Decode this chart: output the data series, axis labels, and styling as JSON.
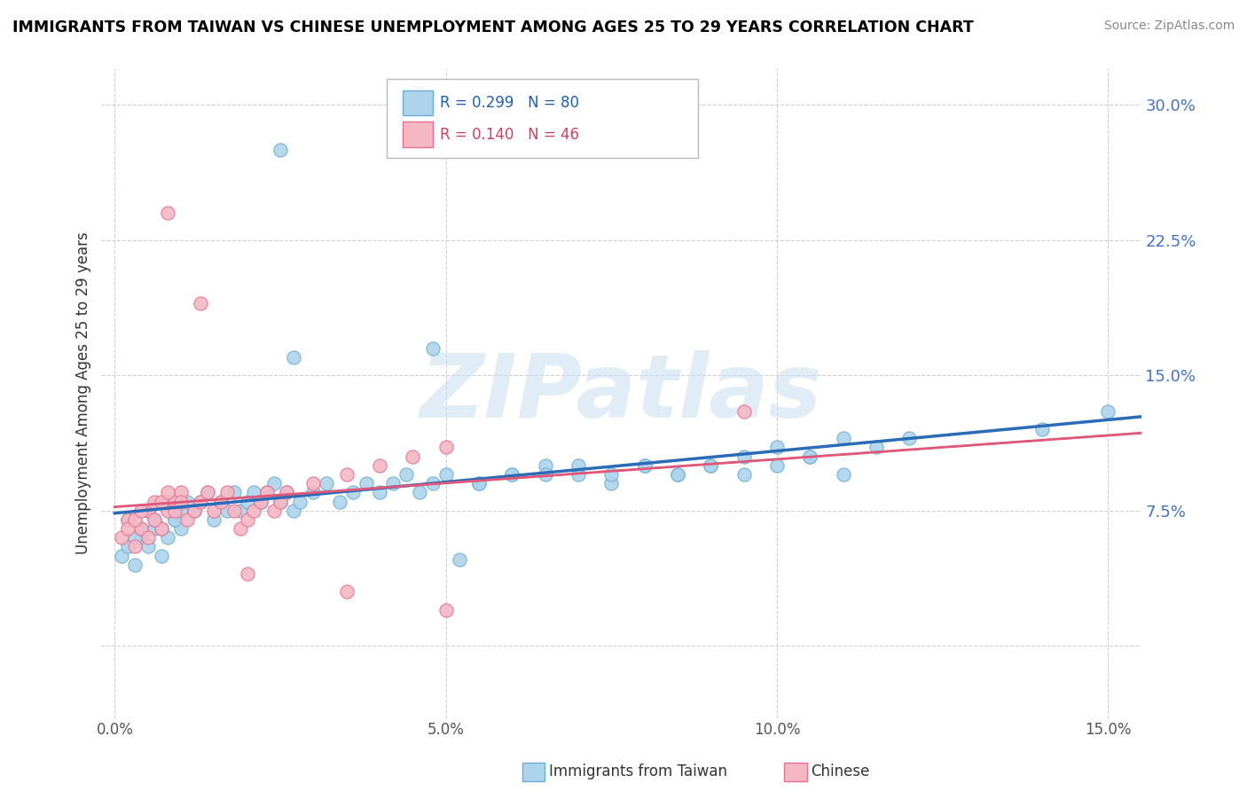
{
  "title": "IMMIGRANTS FROM TAIWAN VS CHINESE UNEMPLOYMENT AMONG AGES 25 TO 29 YEARS CORRELATION CHART",
  "source": "Source: ZipAtlas.com",
  "ylabel": "Unemployment Among Ages 25 to 29 years",
  "xlim": [
    -0.002,
    0.155
  ],
  "ylim": [
    -0.04,
    0.32
  ],
  "xticks": [
    0.0,
    0.05,
    0.1,
    0.15
  ],
  "xtick_labels": [
    "0.0%",
    "5.0%",
    "10.0%",
    "15.0%"
  ],
  "yticks": [
    0.0,
    0.075,
    0.15,
    0.225,
    0.3
  ],
  "ytick_labels": [
    "",
    "7.5%",
    "15.0%",
    "22.5%",
    "30.0%"
  ],
  "bottom_legend": [
    "Immigrants from Taiwan",
    "Chinese"
  ],
  "watermark": "ZIPatlas",
  "series1_color": "#aed4ec",
  "series2_color": "#f4b8c4",
  "series1_edge": "#6aaed6",
  "series2_edge": "#e87090",
  "trend1_color": "#2b6cb8",
  "trend2_color": "#e05878",
  "grid_color": "#d0d0d0",
  "taiwan_R": 0.299,
  "taiwan_N": 80,
  "chinese_R": 0.14,
  "chinese_N": 46,
  "taiwan_x": [
    0.001,
    0.002,
    0.003,
    0.004,
    0.005,
    0.006,
    0.007,
    0.008,
    0.009,
    0.01,
    0.002,
    0.003,
    0.004,
    0.005,
    0.006,
    0.007,
    0.008,
    0.009,
    0.01,
    0.011,
    0.012,
    0.013,
    0.014,
    0.015,
    0.016,
    0.017,
    0.018,
    0.019,
    0.02,
    0.021,
    0.022,
    0.023,
    0.024,
    0.025,
    0.026,
    0.027,
    0.028,
    0.03,
    0.032,
    0.034,
    0.036,
    0.038,
    0.04,
    0.042,
    0.044,
    0.046,
    0.048,
    0.05,
    0.055,
    0.06,
    0.065,
    0.07,
    0.075,
    0.08,
    0.085,
    0.09,
    0.095,
    0.1,
    0.105,
    0.11,
    0.025,
    0.027,
    0.048,
    0.052,
    0.055,
    0.06,
    0.065,
    0.07,
    0.075,
    0.08,
    0.085,
    0.09,
    0.095,
    0.1,
    0.105,
    0.11,
    0.115,
    0.12,
    0.14,
    0.15
  ],
  "taiwan_y": [
    0.05,
    0.055,
    0.045,
    0.06,
    0.055,
    0.065,
    0.05,
    0.06,
    0.07,
    0.065,
    0.07,
    0.06,
    0.065,
    0.075,
    0.07,
    0.065,
    0.08,
    0.07,
    0.075,
    0.08,
    0.075,
    0.08,
    0.085,
    0.07,
    0.08,
    0.075,
    0.085,
    0.075,
    0.08,
    0.085,
    0.08,
    0.085,
    0.09,
    0.08,
    0.085,
    0.075,
    0.08,
    0.085,
    0.09,
    0.08,
    0.085,
    0.09,
    0.085,
    0.09,
    0.095,
    0.085,
    0.09,
    0.095,
    0.09,
    0.095,
    0.1,
    0.095,
    0.09,
    0.1,
    0.095,
    0.1,
    0.095,
    0.1,
    0.105,
    0.095,
    0.275,
    0.16,
    0.165,
    0.048,
    0.09,
    0.095,
    0.095,
    0.1,
    0.095,
    0.1,
    0.095,
    0.1,
    0.105,
    0.11,
    0.105,
    0.115,
    0.11,
    0.115,
    0.12,
    0.13
  ],
  "chinese_x": [
    0.001,
    0.002,
    0.003,
    0.004,
    0.005,
    0.006,
    0.007,
    0.008,
    0.009,
    0.01,
    0.002,
    0.003,
    0.004,
    0.005,
    0.006,
    0.007,
    0.008,
    0.009,
    0.01,
    0.011,
    0.012,
    0.013,
    0.014,
    0.015,
    0.016,
    0.017,
    0.018,
    0.019,
    0.02,
    0.021,
    0.022,
    0.023,
    0.024,
    0.025,
    0.026,
    0.03,
    0.035,
    0.04,
    0.045,
    0.05,
    0.008,
    0.013,
    0.02,
    0.035,
    0.05,
    0.095
  ],
  "chinese_y": [
    0.06,
    0.07,
    0.055,
    0.065,
    0.075,
    0.08,
    0.065,
    0.075,
    0.08,
    0.085,
    0.065,
    0.07,
    0.075,
    0.06,
    0.07,
    0.08,
    0.085,
    0.075,
    0.08,
    0.07,
    0.075,
    0.08,
    0.085,
    0.075,
    0.08,
    0.085,
    0.075,
    0.065,
    0.07,
    0.075,
    0.08,
    0.085,
    0.075,
    0.08,
    0.085,
    0.09,
    0.095,
    0.1,
    0.105,
    0.11,
    0.24,
    0.19,
    0.04,
    0.03,
    0.02,
    0.13
  ]
}
